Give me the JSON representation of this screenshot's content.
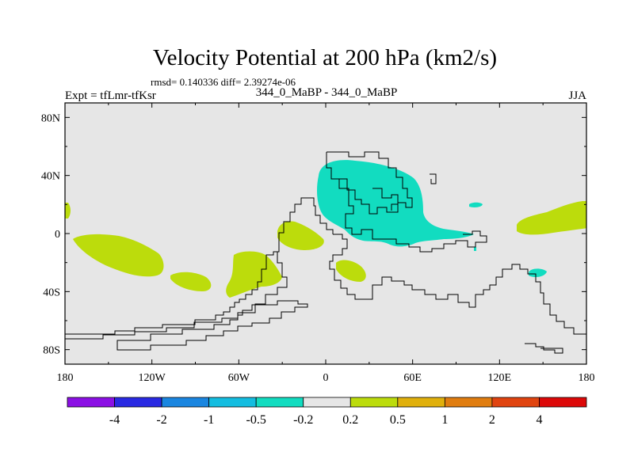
{
  "chart_data": {
    "type": "heatmap",
    "title": "Velocity Potential at 200 hPa (km2/s)",
    "stats_line": "rmsd= 0.140336 diff= 2.39274e-06",
    "left_label": "Expt = tfLmr-tfKsr",
    "center_label": "344_0_MaBP - 344_0_MaBP",
    "right_label": "JJA",
    "x_ticks": [
      "180",
      "120W",
      "60W",
      "0",
      "60E",
      "120E",
      "180"
    ],
    "y_ticks": [
      "80N",
      "40N",
      "0",
      "40S",
      "80S"
    ],
    "xlim": [
      -180,
      180
    ],
    "ylim": [
      -90,
      90
    ],
    "colorbar": {
      "labels": [
        "-4",
        "-2",
        "-1",
        "-0.5",
        "-0.2",
        "0.2",
        "0.5",
        "1",
        "2",
        "4"
      ],
      "colors": [
        "#8b10e4",
        "#2929e2",
        "#1a86e0",
        "#14bde0",
        "#12dcc0",
        "#e6e6e6",
        "#bcdc0c",
        "#e0b00c",
        "#e07d10",
        "#e04410",
        "#dc0808"
      ]
    },
    "background_color": "#e6e6e6",
    "positive_color": "#bcdc0c",
    "negative_color": "#12dcc0",
    "regions": [
      {
        "sign": "negative",
        "label": "-0.5 to -0.2",
        "lon": [
          -5,
          105
        ],
        "lat": [
          -10,
          48
        ]
      },
      {
        "sign": "negative",
        "label": "-0.5 to -0.2",
        "lon": [
          100,
          110
        ],
        "lat": [
          17,
          22
        ]
      },
      {
        "sign": "negative",
        "label": "-0.5 to -0.2",
        "lon": [
          140,
          152
        ],
        "lat": [
          -31,
          -24
        ]
      },
      {
        "sign": "positive",
        "label": "0.2 to 0.5",
        "lon": [
          -178,
          -85
        ],
        "lat": [
          -30,
          0
        ]
      },
      {
        "sign": "positive",
        "label": "0.2 to 0.5",
        "lon": [
          -65,
          -30
        ],
        "lat": [
          -43,
          -13
        ]
      },
      {
        "sign": "positive",
        "label": "0.2 to 0.5",
        "lon": [
          -35,
          0
        ],
        "lat": [
          -15,
          10
        ]
      },
      {
        "sign": "positive",
        "label": "0.2 to 0.5",
        "lon": [
          5,
          30
        ],
        "lat": [
          -35,
          -17
        ]
      },
      {
        "sign": "positive",
        "label": "0.2 to 0.5",
        "lon": [
          130,
          180
        ],
        "lat": [
          0,
          22
        ]
      }
    ]
  }
}
